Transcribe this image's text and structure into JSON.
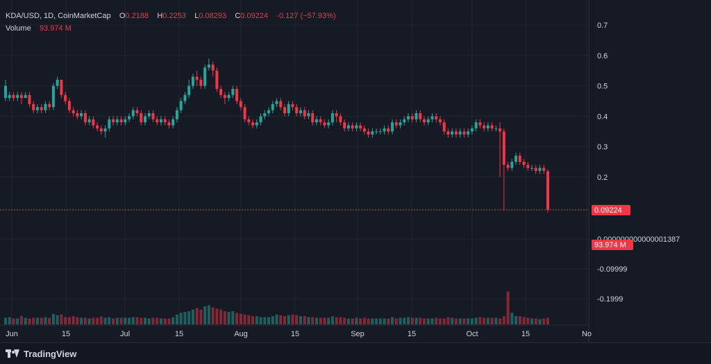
{
  "legend": {
    "symbol": "KDA/USD, 1D, CoinMarketCap",
    "o_label": "O",
    "o_value": "0.2188",
    "h_label": "H",
    "h_value": "0.2253",
    "l_label": "L",
    "l_value": "0.08293",
    "c_label": "C",
    "c_value": "0.09224",
    "change": "-0.127 (−57.93%)",
    "volume_label": "Volume",
    "volume_value": "93.974 M"
  },
  "colors": {
    "up": "#26a69a",
    "down": "#f23645",
    "background": "#161a25",
    "grid": "#232733",
    "axis_text": "#d1d4dc"
  },
  "footer": {
    "brand": "TradingView",
    "logo_icon": "tradingview-logo-icon"
  },
  "chart_data": {
    "type": "candlestick",
    "price_axis": {
      "min": 0.0,
      "max": 0.7,
      "ticks": [
        "0.7",
        "0.6",
        "0.5",
        "0.4",
        "0.3",
        "0.2"
      ]
    },
    "volume_axis": {
      "ticks": [
        "0.000000000000001387",
        "-0.09999",
        "-0.1999"
      ]
    },
    "x_tick_labels": [
      "Jun",
      "15",
      "Jul",
      "15",
      "Aug",
      "15",
      "Sep",
      "15",
      "Oct",
      "15",
      "No"
    ],
    "last_price_label": "0.09224",
    "last_volume_label": "93.974 M",
    "candles": [
      [
        0.46,
        0.5,
        0.52,
        0.45
      ],
      [
        0.46,
        0.47,
        0.48,
        0.45
      ],
      [
        0.47,
        0.46,
        0.48,
        0.45
      ],
      [
        0.46,
        0.47,
        0.48,
        0.45
      ],
      [
        0.47,
        0.46,
        0.48,
        0.44
      ],
      [
        0.46,
        0.47,
        0.48,
        0.46
      ],
      [
        0.47,
        0.44,
        0.48,
        0.43
      ],
      [
        0.44,
        0.42,
        0.45,
        0.41
      ],
      [
        0.42,
        0.43,
        0.44,
        0.41
      ],
      [
        0.43,
        0.42,
        0.44,
        0.41
      ],
      [
        0.42,
        0.44,
        0.45,
        0.41
      ],
      [
        0.44,
        0.43,
        0.45,
        0.42
      ],
      [
        0.43,
        0.5,
        0.51,
        0.42
      ],
      [
        0.5,
        0.52,
        0.53,
        0.49
      ],
      [
        0.52,
        0.47,
        0.52,
        0.46
      ],
      [
        0.47,
        0.45,
        0.48,
        0.44
      ],
      [
        0.45,
        0.42,
        0.46,
        0.41
      ],
      [
        0.42,
        0.41,
        0.43,
        0.4
      ],
      [
        0.41,
        0.4,
        0.42,
        0.39
      ],
      [
        0.4,
        0.41,
        0.42,
        0.39
      ],
      [
        0.41,
        0.38,
        0.42,
        0.37
      ],
      [
        0.38,
        0.39,
        0.4,
        0.37
      ],
      [
        0.39,
        0.37,
        0.4,
        0.36
      ],
      [
        0.37,
        0.36,
        0.38,
        0.35
      ],
      [
        0.36,
        0.35,
        0.37,
        0.34
      ],
      [
        0.35,
        0.36,
        0.37,
        0.33
      ],
      [
        0.36,
        0.39,
        0.4,
        0.35
      ],
      [
        0.39,
        0.38,
        0.4,
        0.37
      ],
      [
        0.38,
        0.39,
        0.4,
        0.37
      ],
      [
        0.39,
        0.38,
        0.4,
        0.37
      ],
      [
        0.38,
        0.39,
        0.4,
        0.37
      ],
      [
        0.39,
        0.4,
        0.41,
        0.38
      ],
      [
        0.4,
        0.42,
        0.43,
        0.39
      ],
      [
        0.42,
        0.41,
        0.43,
        0.4
      ],
      [
        0.41,
        0.38,
        0.42,
        0.37
      ],
      [
        0.38,
        0.4,
        0.41,
        0.37
      ],
      [
        0.4,
        0.41,
        0.42,
        0.39
      ],
      [
        0.41,
        0.39,
        0.42,
        0.38
      ],
      [
        0.39,
        0.38,
        0.4,
        0.37
      ],
      [
        0.38,
        0.39,
        0.4,
        0.37
      ],
      [
        0.39,
        0.38,
        0.4,
        0.37
      ],
      [
        0.38,
        0.37,
        0.39,
        0.36
      ],
      [
        0.37,
        0.39,
        0.4,
        0.36
      ],
      [
        0.39,
        0.42,
        0.43,
        0.38
      ],
      [
        0.42,
        0.45,
        0.46,
        0.41
      ],
      [
        0.45,
        0.47,
        0.48,
        0.44
      ],
      [
        0.47,
        0.5,
        0.52,
        0.46
      ],
      [
        0.5,
        0.53,
        0.54,
        0.49
      ],
      [
        0.53,
        0.52,
        0.55,
        0.5
      ],
      [
        0.52,
        0.5,
        0.53,
        0.49
      ],
      [
        0.5,
        0.56,
        0.57,
        0.49
      ],
      [
        0.56,
        0.57,
        0.59,
        0.55
      ],
      [
        0.57,
        0.55,
        0.58,
        0.53
      ],
      [
        0.55,
        0.49,
        0.56,
        0.48
      ],
      [
        0.49,
        0.47,
        0.5,
        0.46
      ],
      [
        0.47,
        0.46,
        0.48,
        0.44
      ],
      [
        0.46,
        0.47,
        0.48,
        0.45
      ],
      [
        0.47,
        0.49,
        0.5,
        0.46
      ],
      [
        0.49,
        0.45,
        0.5,
        0.44
      ],
      [
        0.45,
        0.43,
        0.46,
        0.42
      ],
      [
        0.43,
        0.39,
        0.44,
        0.38
      ],
      [
        0.39,
        0.38,
        0.4,
        0.37
      ],
      [
        0.38,
        0.37,
        0.39,
        0.36
      ],
      [
        0.37,
        0.38,
        0.39,
        0.36
      ],
      [
        0.38,
        0.4,
        0.41,
        0.37
      ],
      [
        0.4,
        0.41,
        0.42,
        0.39
      ],
      [
        0.41,
        0.42,
        0.43,
        0.4
      ],
      [
        0.42,
        0.44,
        0.45,
        0.41
      ],
      [
        0.44,
        0.45,
        0.46,
        0.43
      ],
      [
        0.45,
        0.43,
        0.46,
        0.42
      ],
      [
        0.43,
        0.41,
        0.44,
        0.4
      ],
      [
        0.41,
        0.44,
        0.45,
        0.4
      ],
      [
        0.44,
        0.43,
        0.45,
        0.42
      ],
      [
        0.43,
        0.41,
        0.44,
        0.4
      ],
      [
        0.41,
        0.42,
        0.43,
        0.4
      ],
      [
        0.42,
        0.4,
        0.43,
        0.39
      ],
      [
        0.4,
        0.41,
        0.42,
        0.39
      ],
      [
        0.41,
        0.38,
        0.42,
        0.37
      ],
      [
        0.38,
        0.39,
        0.4,
        0.37
      ],
      [
        0.39,
        0.38,
        0.4,
        0.37
      ],
      [
        0.38,
        0.37,
        0.39,
        0.36
      ],
      [
        0.37,
        0.38,
        0.39,
        0.36
      ],
      [
        0.38,
        0.41,
        0.42,
        0.37
      ],
      [
        0.41,
        0.4,
        0.42,
        0.38
      ],
      [
        0.4,
        0.38,
        0.41,
        0.37
      ],
      [
        0.38,
        0.36,
        0.39,
        0.35
      ],
      [
        0.36,
        0.37,
        0.38,
        0.35
      ],
      [
        0.37,
        0.36,
        0.38,
        0.35
      ],
      [
        0.36,
        0.37,
        0.38,
        0.35
      ],
      [
        0.37,
        0.36,
        0.38,
        0.35
      ],
      [
        0.36,
        0.35,
        0.37,
        0.34
      ],
      [
        0.35,
        0.34,
        0.36,
        0.33
      ],
      [
        0.34,
        0.35,
        0.36,
        0.33
      ],
      [
        0.35,
        0.35,
        0.36,
        0.34
      ],
      [
        0.35,
        0.35,
        0.36,
        0.34
      ],
      [
        0.35,
        0.36,
        0.37,
        0.34
      ],
      [
        0.36,
        0.35,
        0.37,
        0.34
      ],
      [
        0.35,
        0.38,
        0.39,
        0.34
      ],
      [
        0.38,
        0.37,
        0.39,
        0.36
      ],
      [
        0.37,
        0.38,
        0.39,
        0.36
      ],
      [
        0.38,
        0.39,
        0.4,
        0.37
      ],
      [
        0.39,
        0.4,
        0.41,
        0.38
      ],
      [
        0.4,
        0.39,
        0.41,
        0.38
      ],
      [
        0.39,
        0.41,
        0.42,
        0.38
      ],
      [
        0.41,
        0.39,
        0.42,
        0.38
      ],
      [
        0.39,
        0.38,
        0.4,
        0.37
      ],
      [
        0.38,
        0.39,
        0.4,
        0.37
      ],
      [
        0.39,
        0.4,
        0.41,
        0.38
      ],
      [
        0.4,
        0.39,
        0.41,
        0.38
      ],
      [
        0.39,
        0.38,
        0.4,
        0.37
      ],
      [
        0.38,
        0.35,
        0.39,
        0.34
      ],
      [
        0.35,
        0.34,
        0.36,
        0.33
      ],
      [
        0.34,
        0.35,
        0.36,
        0.33
      ],
      [
        0.35,
        0.34,
        0.36,
        0.33
      ],
      [
        0.34,
        0.35,
        0.36,
        0.33
      ],
      [
        0.35,
        0.34,
        0.36,
        0.33
      ],
      [
        0.34,
        0.35,
        0.36,
        0.33
      ],
      [
        0.35,
        0.36,
        0.37,
        0.34
      ],
      [
        0.36,
        0.38,
        0.39,
        0.35
      ],
      [
        0.38,
        0.37,
        0.39,
        0.36
      ],
      [
        0.37,
        0.36,
        0.38,
        0.35
      ],
      [
        0.36,
        0.37,
        0.38,
        0.35
      ],
      [
        0.37,
        0.36,
        0.38,
        0.35
      ],
      [
        0.36,
        0.36,
        0.37,
        0.35
      ],
      [
        0.36,
        0.35,
        0.38,
        0.2
      ],
      [
        0.35,
        0.24,
        0.36,
        0.09
      ],
      [
        0.24,
        0.23,
        0.25,
        0.22
      ],
      [
        0.23,
        0.25,
        0.26,
        0.22
      ],
      [
        0.25,
        0.27,
        0.28,
        0.24
      ],
      [
        0.27,
        0.25,
        0.28,
        0.24
      ],
      [
        0.25,
        0.24,
        0.26,
        0.23
      ],
      [
        0.24,
        0.23,
        0.25,
        0.22
      ],
      [
        0.23,
        0.23,
        0.24,
        0.22
      ],
      [
        0.23,
        0.22,
        0.24,
        0.21
      ],
      [
        0.22,
        0.23,
        0.24,
        0.21
      ],
      [
        0.23,
        0.22,
        0.24,
        0.21
      ],
      [
        0.2188,
        0.09224,
        0.2253,
        0.08293
      ]
    ],
    "volumes": [
      0.2,
      0.22,
      0.18,
      0.18,
      0.25,
      0.2,
      0.18,
      0.2,
      0.2,
      0.2,
      0.22,
      0.2,
      0.32,
      0.28,
      0.3,
      0.22,
      0.22,
      0.25,
      0.22,
      0.2,
      0.2,
      0.18,
      0.2,
      0.2,
      0.24,
      0.2,
      0.22,
      0.18,
      0.2,
      0.2,
      0.2,
      0.2,
      0.22,
      0.22,
      0.2,
      0.2,
      0.18,
      0.2,
      0.2,
      0.18,
      0.18,
      0.18,
      0.22,
      0.3,
      0.35,
      0.38,
      0.4,
      0.45,
      0.5,
      0.45,
      0.55,
      0.58,
      0.52,
      0.48,
      0.45,
      0.4,
      0.38,
      0.4,
      0.35,
      0.32,
      0.3,
      0.28,
      0.25,
      0.25,
      0.22,
      0.22,
      0.22,
      0.25,
      0.3,
      0.28,
      0.25,
      0.28,
      0.3,
      0.28,
      0.25,
      0.25,
      0.22,
      0.22,
      0.2,
      0.2,
      0.2,
      0.2,
      0.24,
      0.22,
      0.22,
      0.2,
      0.18,
      0.18,
      0.2,
      0.18,
      0.2,
      0.18,
      0.18,
      0.18,
      0.18,
      0.18,
      0.18,
      0.22,
      0.18,
      0.2,
      0.2,
      0.22,
      0.2,
      0.2,
      0.2,
      0.18,
      0.18,
      0.18,
      0.2,
      0.18,
      0.18,
      0.22,
      0.2,
      0.18,
      0.18,
      0.18,
      0.18,
      0.18,
      0.2,
      0.22,
      0.2,
      0.2,
      0.2,
      0.2,
      0.18,
      0.25,
      1.0,
      0.35,
      0.25,
      0.25,
      0.22,
      0.2,
      0.18,
      0.18,
      0.16,
      0.18,
      0.2,
      0.22,
      2.4
    ]
  }
}
